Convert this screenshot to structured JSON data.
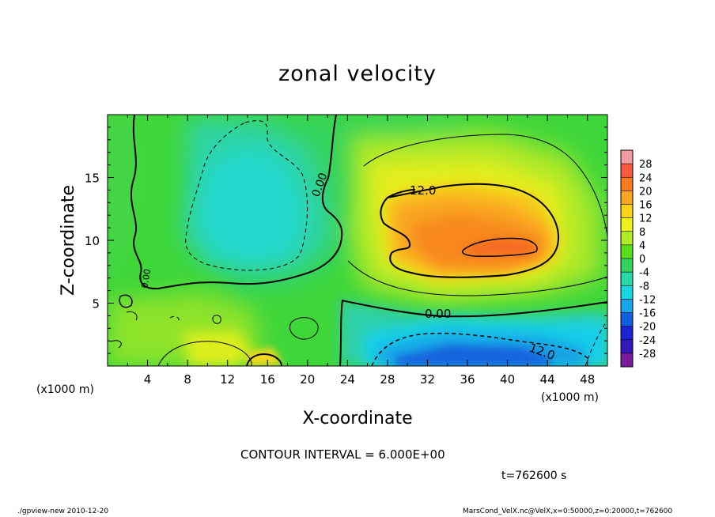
{
  "title": "zonal velocity",
  "footer": {
    "interval_text": "CONTOUR INTERVAL = 6.000E+00",
    "time_text": "t=762600 s",
    "program_text": "./gpview-new   2010-12-20",
    "file_text": "MarsCond_VelX.nc@VelX,x=0:50000,z=0:20000,t=762600"
  },
  "chart_data": {
    "type": "heatmap",
    "title": "zonal velocity",
    "xlabel": "X-coordinate",
    "ylabel": "Z-coordinate",
    "x_unit_label": "(x1000 m)",
    "z_unit_label": "(x1000 m)",
    "xlim": [
      0,
      50
    ],
    "ylim": [
      0,
      20
    ],
    "x_ticks": [
      "4",
      "8",
      "12",
      "16",
      "20",
      "24",
      "28",
      "32",
      "36",
      "40",
      "44",
      "48"
    ],
    "y_ticks": [
      "5",
      "10",
      "15"
    ],
    "contour_interval": 6.0,
    "contour_labels": [
      "0.00",
      "12.0",
      "0.00",
      "12.0",
      "0.00"
    ],
    "colorbar": {
      "levels": [
        "28",
        "24",
        "20",
        "16",
        "12",
        "8",
        "4",
        "0",
        "-4",
        "-8",
        "-12",
        "-16",
        "-20",
        "-24",
        "-28"
      ],
      "colors": [
        "#f39aa3",
        "#f75a3e",
        "#f97a1f",
        "#f9a423",
        "#fcd219",
        "#eef01c",
        "#b2ec28",
        "#58dc1e",
        "#36d35c",
        "#29d7a8",
        "#19d8e4",
        "#18a6e8",
        "#1060e0",
        "#1c24d0",
        "#3418b8",
        "#7a1a9c"
      ]
    },
    "features": [
      {
        "kind": "positive jet core",
        "x_center": 37,
        "z_center": 10.5,
        "peak": 20
      },
      {
        "kind": "negative jet near surface",
        "x_center": 36,
        "z_center": 1,
        "peak": -20
      },
      {
        "kind": "weak negative region",
        "x_center": 13,
        "z_center": 12,
        "peak": -10
      }
    ]
  }
}
